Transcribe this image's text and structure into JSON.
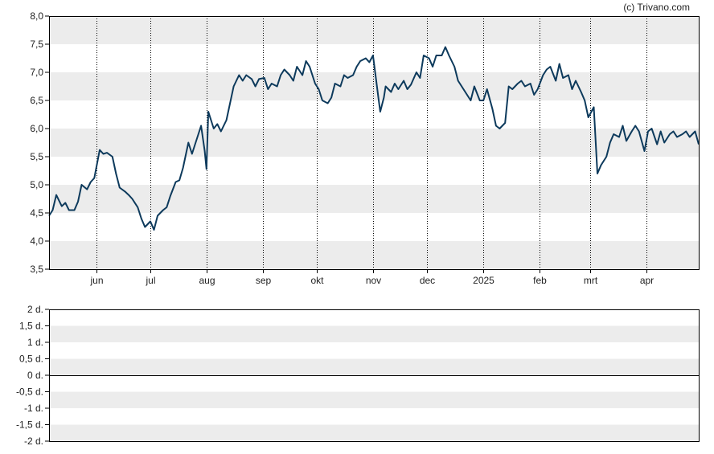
{
  "copyright": "(c) Trivano.com",
  "colors": {
    "line": "#0d3a5c",
    "band": "#ececec",
    "grid": "#000000",
    "background": "#ffffff"
  },
  "chart_data": [
    {
      "type": "line",
      "title": "",
      "xlabel": "",
      "ylabel": "",
      "ylim": [
        3.5,
        8.0
      ],
      "y_ticks": [
        "8,0",
        "7,5",
        "7,0",
        "6,5",
        "6,0",
        "5,5",
        "5,0",
        "4,5",
        "4,0",
        "3,5"
      ],
      "x_ticks": [
        "jun",
        "jul",
        "aug",
        "sep",
        "okt",
        "nov",
        "dec",
        "2025",
        "feb",
        "mrt",
        "apr"
      ],
      "grid": "alternating horizontal bands, dotted vertical lines at month boundaries",
      "x_range": [
        "2024-05-06",
        "2025-04-30"
      ],
      "series": [
        {
          "name": "",
          "points": [
            [
              "2024-05-06",
              4.45
            ],
            [
              "2024-05-08",
              4.55
            ],
            [
              "2024-05-10",
              4.82
            ],
            [
              "2024-05-13",
              4.62
            ],
            [
              "2024-05-15",
              4.68
            ],
            [
              "2024-05-17",
              4.55
            ],
            [
              "2024-05-20",
              4.55
            ],
            [
              "2024-05-22",
              4.7
            ],
            [
              "2024-05-24",
              5.0
            ],
            [
              "2024-05-27",
              4.92
            ],
            [
              "2024-05-29",
              5.05
            ],
            [
              "2024-05-31",
              5.12
            ],
            [
              "2024-06-03",
              5.62
            ],
            [
              "2024-06-05",
              5.55
            ],
            [
              "2024-06-07",
              5.57
            ],
            [
              "2024-06-10",
              5.5
            ],
            [
              "2024-06-12",
              5.2
            ],
            [
              "2024-06-14",
              4.95
            ],
            [
              "2024-06-17",
              4.88
            ],
            [
              "2024-06-19",
              4.82
            ],
            [
              "2024-06-21",
              4.75
            ],
            [
              "2024-06-24",
              4.6
            ],
            [
              "2024-06-26",
              4.4
            ],
            [
              "2024-06-28",
              4.25
            ],
            [
              "2024-07-01",
              4.35
            ],
            [
              "2024-07-03",
              4.2
            ],
            [
              "2024-07-05",
              4.45
            ],
            [
              "2024-07-08",
              4.55
            ],
            [
              "2024-07-10",
              4.6
            ],
            [
              "2024-07-12",
              4.8
            ],
            [
              "2024-07-15",
              5.05
            ],
            [
              "2024-07-17",
              5.08
            ],
            [
              "2024-07-19",
              5.3
            ],
            [
              "2024-07-22",
              5.75
            ],
            [
              "2024-07-24",
              5.55
            ],
            [
              "2024-07-26",
              5.75
            ],
            [
              "2024-07-29",
              6.05
            ],
            [
              "2024-07-31",
              5.6
            ],
            [
              "2024-08-01",
              5.28
            ],
            [
              "2024-08-02",
              6.3
            ],
            [
              "2024-08-05",
              6.0
            ],
            [
              "2024-08-07",
              6.08
            ],
            [
              "2024-08-09",
              5.95
            ],
            [
              "2024-08-12",
              6.15
            ],
            [
              "2024-08-14",
              6.45
            ],
            [
              "2024-08-16",
              6.75
            ],
            [
              "2024-08-19",
              6.95
            ],
            [
              "2024-08-21",
              6.85
            ],
            [
              "2024-08-23",
              6.95
            ],
            [
              "2024-08-26",
              6.88
            ],
            [
              "2024-08-28",
              6.75
            ],
            [
              "2024-08-30",
              6.88
            ],
            [
              "2024-09-02",
              6.9
            ],
            [
              "2024-09-04",
              6.7
            ],
            [
              "2024-09-06",
              6.8
            ],
            [
              "2024-09-09",
              6.75
            ],
            [
              "2024-09-11",
              6.95
            ],
            [
              "2024-09-13",
              7.05
            ],
            [
              "2024-09-16",
              6.95
            ],
            [
              "2024-09-18",
              6.85
            ],
            [
              "2024-09-20",
              7.1
            ],
            [
              "2024-09-23",
              6.95
            ],
            [
              "2024-09-25",
              7.2
            ],
            [
              "2024-09-27",
              7.1
            ],
            [
              "2024-09-30",
              6.8
            ],
            [
              "2024-10-02",
              6.7
            ],
            [
              "2024-10-04",
              6.5
            ],
            [
              "2024-10-07",
              6.45
            ],
            [
              "2024-10-09",
              6.55
            ],
            [
              "2024-10-11",
              6.8
            ],
            [
              "2024-10-14",
              6.75
            ],
            [
              "2024-10-16",
              6.95
            ],
            [
              "2024-10-18",
              6.9
            ],
            [
              "2024-10-21",
              6.95
            ],
            [
              "2024-10-23",
              7.1
            ],
            [
              "2024-10-25",
              7.2
            ],
            [
              "2024-10-28",
              7.25
            ],
            [
              "2024-10-30",
              7.18
            ],
            [
              "2024-11-01",
              7.3
            ],
            [
              "2024-11-04",
              6.55
            ],
            [
              "2024-11-05",
              6.3
            ],
            [
              "2024-11-07",
              6.55
            ],
            [
              "2024-11-08",
              6.75
            ],
            [
              "2024-11-11",
              6.65
            ],
            [
              "2024-11-13",
              6.8
            ],
            [
              "2024-11-15",
              6.7
            ],
            [
              "2024-11-18",
              6.85
            ],
            [
              "2024-11-20",
              6.7
            ],
            [
              "2024-11-22",
              6.78
            ],
            [
              "2024-11-25",
              7.0
            ],
            [
              "2024-11-27",
              6.9
            ],
            [
              "2024-11-29",
              7.3
            ],
            [
              "2024-12-02",
              7.25
            ],
            [
              "2024-12-04",
              7.1
            ],
            [
              "2024-12-06",
              7.3
            ],
            [
              "2024-12-09",
              7.3
            ],
            [
              "2024-12-11",
              7.45
            ],
            [
              "2024-12-13",
              7.3
            ],
            [
              "2024-12-16",
              7.1
            ],
            [
              "2024-12-18",
              6.85
            ],
            [
              "2024-12-20",
              6.75
            ],
            [
              "2024-12-23",
              6.6
            ],
            [
              "2024-12-25",
              6.5
            ],
            [
              "2024-12-27",
              6.75
            ],
            [
              "2024-12-30",
              6.5
            ],
            [
              "2025-01-01",
              6.5
            ],
            [
              "2025-01-03",
              6.7
            ],
            [
              "2025-01-06",
              6.35
            ],
            [
              "2025-01-08",
              6.05
            ],
            [
              "2025-01-10",
              6.0
            ],
            [
              "2025-01-13",
              6.1
            ],
            [
              "2025-01-15",
              6.75
            ],
            [
              "2025-01-17",
              6.7
            ],
            [
              "2025-01-20",
              6.8
            ],
            [
              "2025-01-22",
              6.85
            ],
            [
              "2025-01-24",
              6.75
            ],
            [
              "2025-01-27",
              6.8
            ],
            [
              "2025-01-29",
              6.6
            ],
            [
              "2025-01-31",
              6.7
            ],
            [
              "2025-02-03",
              6.95
            ],
            [
              "2025-02-05",
              7.05
            ],
            [
              "2025-02-07",
              7.1
            ],
            [
              "2025-02-10",
              6.85
            ],
            [
              "2025-02-12",
              7.15
            ],
            [
              "2025-02-14",
              6.9
            ],
            [
              "2025-02-17",
              6.95
            ],
            [
              "2025-02-19",
              6.7
            ],
            [
              "2025-02-21",
              6.85
            ],
            [
              "2025-02-24",
              6.65
            ],
            [
              "2025-02-26",
              6.5
            ],
            [
              "2025-02-28",
              6.2
            ],
            [
              "2025-03-03",
              6.38
            ],
            [
              "2025-03-05",
              5.2
            ],
            [
              "2025-03-07",
              5.35
            ],
            [
              "2025-03-10",
              5.5
            ],
            [
              "2025-03-12",
              5.75
            ],
            [
              "2025-03-14",
              5.9
            ],
            [
              "2025-03-17",
              5.85
            ],
            [
              "2025-03-19",
              6.05
            ],
            [
              "2025-03-21",
              5.78
            ],
            [
              "2025-03-24",
              5.95
            ],
            [
              "2025-03-26",
              6.05
            ],
            [
              "2025-03-28",
              5.95
            ],
            [
              "2025-03-31",
              5.6
            ],
            [
              "2025-04-02",
              5.95
            ],
            [
              "2025-04-04",
              6.0
            ],
            [
              "2025-04-07",
              5.72
            ],
            [
              "2025-04-09",
              5.95
            ],
            [
              "2025-04-11",
              5.75
            ],
            [
              "2025-04-14",
              5.9
            ],
            [
              "2025-04-16",
              5.95
            ],
            [
              "2025-04-18",
              5.85
            ],
            [
              "2025-04-21",
              5.9
            ],
            [
              "2025-04-23",
              5.95
            ],
            [
              "2025-04-25",
              5.85
            ],
            [
              "2025-04-28",
              5.95
            ],
            [
              "2025-04-30",
              5.72
            ]
          ]
        }
      ]
    },
    {
      "type": "bar",
      "title": "",
      "xlabel": "",
      "ylabel": "",
      "ylim": [
        -2,
        2
      ],
      "y_ticks": [
        "2 d.",
        "1,5 d.",
        "1 d.",
        "0,5 d.",
        "0 d.",
        "-0,5 d.",
        "-1 d.",
        "-1,5 d.",
        "-2 d."
      ],
      "grid": "alternating horizontal bands",
      "series": []
    }
  ]
}
